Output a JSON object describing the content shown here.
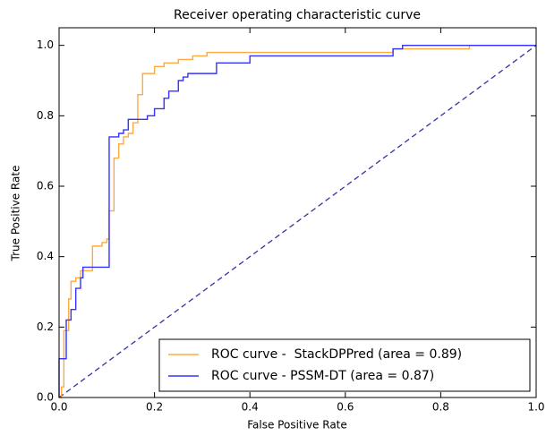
{
  "chart_data": {
    "type": "line",
    "title": "Receiver operating characteristic curve",
    "x_label": "False Positive Rate",
    "y_label": "True Positive Rate",
    "xlim": [
      0,
      1
    ],
    "ylim": [
      0,
      1.05
    ],
    "xticks": [
      {
        "value": 0,
        "label": "0.0"
      },
      0.2,
      0.4,
      0.6,
      0.8,
      {
        "value": 1,
        "label": "1.0"
      }
    ],
    "yticks": [
      {
        "value": 0,
        "label": "0.0"
      },
      0.2,
      0.4,
      0.6,
      0.8,
      {
        "value": 1,
        "label": "1.0"
      }
    ],
    "legend": "lower right",
    "series": [
      {
        "name": "ROC curve -  StackDPPred (area = 0.89)",
        "color": "#ffa940",
        "x": [
          0,
          0.005,
          0.005,
          0.01,
          0.01,
          0.02,
          0.02,
          0.025,
          0.025,
          0.035,
          0.035,
          0.045,
          0.045,
          0.07,
          0.07,
          0.09,
          0.09,
          0.1,
          0.1,
          0.105,
          0.105,
          0.115,
          0.115,
          0.125,
          0.125,
          0.135,
          0.135,
          0.145,
          0.145,
          0.155,
          0.155,
          0.165,
          0.165,
          0.175,
          0.175,
          0.2,
          0.2,
          0.22,
          0.22,
          0.25,
          0.25,
          0.28,
          0.28,
          0.31,
          0.31,
          0.7,
          0.7,
          0.86,
          0.86,
          1.0
        ],
        "values": [
          0,
          0,
          0.03,
          0.03,
          0.19,
          0.19,
          0.28,
          0.28,
          0.33,
          0.33,
          0.34,
          0.34,
          0.36,
          0.36,
          0.43,
          0.43,
          0.44,
          0.44,
          0.45,
          0.45,
          0.53,
          0.53,
          0.68,
          0.68,
          0.72,
          0.72,
          0.74,
          0.74,
          0.75,
          0.75,
          0.78,
          0.78,
          0.86,
          0.86,
          0.92,
          0.92,
          0.94,
          0.94,
          0.95,
          0.95,
          0.96,
          0.96,
          0.97,
          0.97,
          0.98,
          0.98,
          0.99,
          0.99,
          1.0,
          1.0
        ]
      },
      {
        "name": "ROC curve - PSSM-DT (area = 0.87)",
        "color": "#3333ff",
        "x": [
          0,
          0,
          0.015,
          0.015,
          0.025,
          0.025,
          0.035,
          0.035,
          0.045,
          0.045,
          0.05,
          0.05,
          0.105,
          0.105,
          0.125,
          0.125,
          0.135,
          0.135,
          0.145,
          0.145,
          0.185,
          0.185,
          0.2,
          0.2,
          0.22,
          0.22,
          0.23,
          0.23,
          0.25,
          0.25,
          0.26,
          0.26,
          0.27,
          0.27,
          0.33,
          0.33,
          0.4,
          0.4,
          0.7,
          0.7,
          0.72,
          0.72,
          1.0
        ],
        "values": [
          0,
          0.11,
          0.11,
          0.22,
          0.22,
          0.25,
          0.25,
          0.31,
          0.31,
          0.34,
          0.34,
          0.37,
          0.37,
          0.74,
          0.74,
          0.75,
          0.75,
          0.76,
          0.76,
          0.79,
          0.79,
          0.8,
          0.8,
          0.82,
          0.82,
          0.85,
          0.85,
          0.87,
          0.87,
          0.9,
          0.9,
          0.91,
          0.91,
          0.92,
          0.92,
          0.95,
          0.95,
          0.97,
          0.97,
          0.99,
          0.99,
          1.0,
          1.0
        ]
      }
    ]
  }
}
